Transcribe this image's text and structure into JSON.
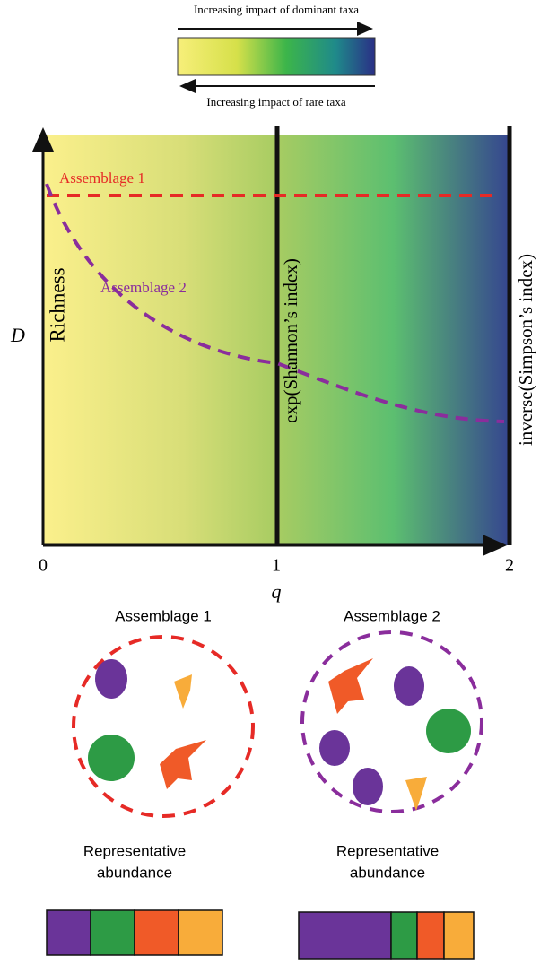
{
  "legend": {
    "top_label": "Increasing impact of dominant taxa",
    "bottom_label": "Increasing impact of rare taxa"
  },
  "plot": {
    "y_label": "D",
    "x_label": "q",
    "x_ticks": [
      "0",
      "1",
      "2"
    ],
    "series": [
      {
        "label": "Assemblage 1"
      },
      {
        "label": "Assemblage 2"
      }
    ],
    "reference_lines": [
      "Richness",
      "exp(Shannon’s index)",
      "inverse(Simpson’s index)"
    ]
  },
  "assemblages": [
    {
      "title": "Assemblage 1",
      "caption": [
        "Representative",
        "abundance"
      ]
    },
    {
      "title": "Assemblage 2",
      "caption": [
        "Representative",
        "abundance"
      ]
    }
  ]
}
